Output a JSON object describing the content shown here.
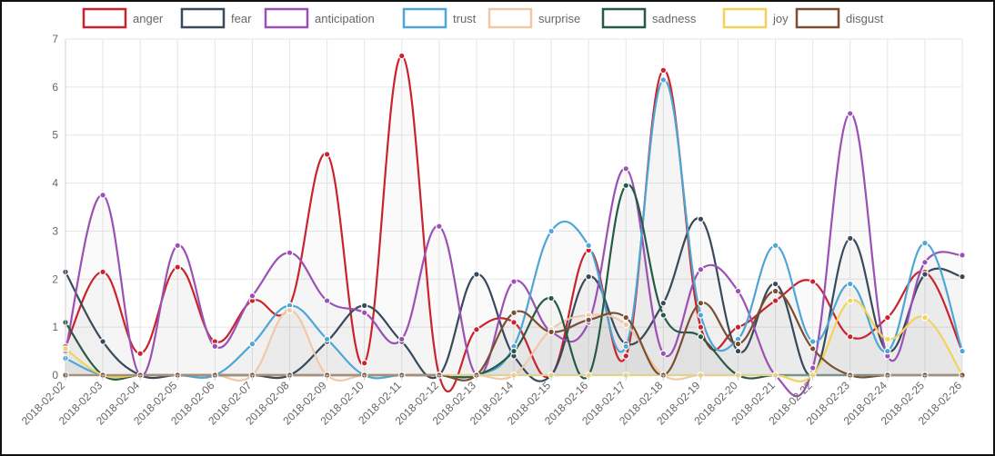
{
  "chart_data": {
    "type": "line",
    "title": "",
    "xlabel": "",
    "ylabel": "",
    "ylim": [
      0,
      7
    ],
    "y_ticks": [
      0,
      1,
      2,
      3,
      4,
      5,
      6,
      7
    ],
    "grid": true,
    "legend_position": "top",
    "categories": [
      "2018-02-02",
      "2018-02-03",
      "2018-02-04",
      "2018-02-05",
      "2018-02-06",
      "2018-02-07",
      "2018-02-08",
      "2018-02-09",
      "2018-02-10",
      "2018-02-11",
      "2018-02-12",
      "2018-02-13",
      "2018-02-14",
      "2018-02-15",
      "2018-02-16",
      "2018-02-17",
      "2018-02-18",
      "2018-02-19",
      "2018-02-20",
      "2018-02-21",
      "2018-02-22",
      "2018-02-23",
      "2018-02-24",
      "2018-02-25",
      "2018-02-26"
    ],
    "series": [
      {
        "name": "anger",
        "color": "#c9232d",
        "values": [
          0.6,
          2.15,
          0.45,
          2.25,
          0.7,
          1.55,
          1.45,
          4.6,
          0.25,
          6.65,
          0.0,
          0.95,
          1.1,
          0.0,
          2.6,
          0.4,
          6.35,
          1.0,
          1.0,
          1.55,
          1.95,
          0.8,
          1.2,
          2.15,
          0.5
        ]
      },
      {
        "name": "fear",
        "color": "#37495a",
        "values": [
          2.15,
          0.7,
          0.0,
          0.0,
          0.0,
          0.0,
          0.0,
          0.7,
          1.45,
          0.7,
          0.0,
          2.1,
          0.4,
          0.0,
          2.05,
          0.65,
          1.5,
          3.25,
          0.5,
          1.9,
          0.0,
          2.85,
          0.5,
          2.1,
          2.05
        ]
      },
      {
        "name": "anticipation",
        "color": "#9b50b5",
        "values": [
          0.5,
          3.75,
          0.0,
          2.7,
          0.6,
          1.65,
          2.55,
          1.55,
          1.3,
          0.75,
          3.1,
          0.0,
          1.95,
          0.9,
          1.1,
          4.3,
          0.45,
          2.2,
          1.75,
          0.0,
          0.15,
          5.45,
          0.4,
          2.35,
          2.5
        ]
      },
      {
        "name": "trust",
        "color": "#4da6d6",
        "values": [
          0.35,
          0.0,
          0.0,
          0.0,
          0.0,
          0.65,
          1.45,
          0.75,
          0.0,
          0.0,
          0.0,
          0.0,
          0.6,
          3.0,
          2.7,
          0.6,
          6.15,
          1.25,
          0.75,
          2.7,
          0.7,
          1.9,
          0.5,
          2.75,
          0.5
        ]
      },
      {
        "name": "surprise",
        "color": "#efc9aa",
        "values": [
          0.0,
          0.0,
          0.0,
          0.0,
          0.0,
          0.0,
          1.35,
          0.0,
          0.0,
          0.0,
          0.0,
          0.0,
          0.0,
          0.95,
          1.25,
          1.05,
          0.0,
          0.0,
          0.0,
          0.0,
          0.0,
          0.0,
          0.0,
          0.0,
          0.0
        ]
      },
      {
        "name": "sadness",
        "color": "#265a45",
        "values": [
          1.1,
          0.0,
          0.0,
          0.0,
          0.0,
          0.0,
          0.0,
          0.0,
          0.0,
          0.0,
          0.0,
          0.0,
          0.5,
          1.6,
          0.0,
          3.95,
          1.25,
          0.8,
          0.0,
          0.0,
          0.0,
          0.0,
          0.0,
          0.0,
          0.0
        ]
      },
      {
        "name": "joy",
        "color": "#f2d35a",
        "values": [
          0.55,
          0.0,
          0.0,
          0.0,
          0.0,
          0.0,
          0.0,
          0.0,
          0.0,
          0.0,
          0.0,
          0.0,
          0.0,
          0.0,
          0.0,
          0.0,
          0.0,
          0.0,
          0.0,
          0.0,
          0.0,
          1.55,
          0.75,
          1.2,
          0.0
        ]
      },
      {
        "name": "disgust",
        "color": "#7a4e31",
        "values": [
          0.0,
          0.0,
          0.0,
          0.0,
          0.0,
          0.0,
          0.0,
          0.0,
          0.0,
          0.0,
          0.0,
          0.0,
          1.3,
          0.9,
          1.15,
          1.2,
          0.0,
          1.5,
          0.65,
          1.75,
          0.55,
          0.0,
          0.0,
          0.0,
          0.0
        ]
      }
    ]
  }
}
